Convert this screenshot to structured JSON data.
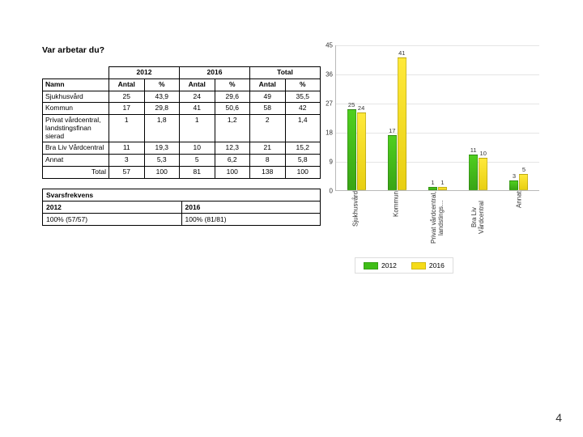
{
  "title": "Var arbetar du?",
  "page_number": "4",
  "table": {
    "years": [
      "2012",
      "2016",
      "Total"
    ],
    "col_headers": {
      "name": "Namn",
      "count": "Antal",
      "pct": "%"
    },
    "rows": [
      {
        "name": "Sjukhusvård",
        "v": [
          "25",
          "43,9",
          "24",
          "29,6",
          "49",
          "35,5"
        ]
      },
      {
        "name": "Kommun",
        "v": [
          "17",
          "29,8",
          "41",
          "50,6",
          "58",
          "42"
        ]
      },
      {
        "name": "Privat vårdcentral, landstingsfinan sierad",
        "v": [
          "1",
          "1,8",
          "1",
          "1,2",
          "2",
          "1,4"
        ]
      },
      {
        "name": "Bra Liv Vårdcentral",
        "v": [
          "11",
          "19,3",
          "10",
          "12,3",
          "21",
          "15,2"
        ]
      },
      {
        "name": "Annat",
        "v": [
          "3",
          "5,3",
          "5",
          "6,2",
          "8",
          "5,8"
        ]
      }
    ],
    "total_row": {
      "label": "Total",
      "v": [
        "57",
        "100",
        "81",
        "100",
        "138",
        "100"
      ]
    }
  },
  "response": {
    "title": "Svarsfrekvens",
    "cols": [
      "2012",
      "2016"
    ],
    "vals": [
      "100% (57/57)",
      "100% (81/81)"
    ]
  },
  "chart": {
    "ymax": 45,
    "yticks": [
      0,
      9,
      18,
      27,
      36,
      45
    ],
    "categories": [
      "Sjukhusvård",
      "Kommun",
      "Privat vårdcentral, landstings…",
      "Bra Liv Vårdcentral",
      "Annat"
    ],
    "series": [
      {
        "label": "2012",
        "color": "g",
        "values": [
          25,
          17,
          1,
          11,
          3
        ]
      },
      {
        "label": "2016",
        "color": "y",
        "values": [
          24,
          41,
          1,
          10,
          5
        ]
      }
    ],
    "colors": {
      "g": "#3fbd17",
      "y": "#f5db18"
    }
  }
}
